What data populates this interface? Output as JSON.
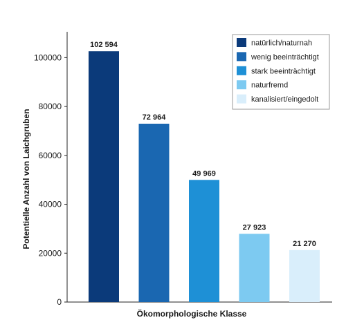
{
  "chart_data": {
    "type": "bar",
    "categories": [
      "natürlich/naturnah",
      "wenig beeinträchtigt",
      "stark beeinträchtigt",
      "naturfremd",
      "kanalisiert/eingedolt"
    ],
    "values": [
      102594,
      72964,
      49969,
      27923,
      21270
    ],
    "data_labels": [
      "102 594",
      "72 964",
      "49 969",
      "27 923",
      "21 270"
    ],
    "colors": [
      "#0b3a7a",
      "#1a67b1",
      "#1e90d6",
      "#7dcaf1",
      "#d9eefb"
    ],
    "xlabel": "Ökomorphologische Klasse",
    "ylabel": "Potentielle Anzahl von Laichgruben",
    "ylim": [
      0,
      110000
    ],
    "yticks": [
      0,
      20000,
      40000,
      60000,
      80000,
      100000
    ],
    "ytick_labels": [
      "0",
      "20000",
      "40000",
      "60000",
      "80000",
      "100000"
    ],
    "legend_position": "top-right",
    "grid": false
  }
}
